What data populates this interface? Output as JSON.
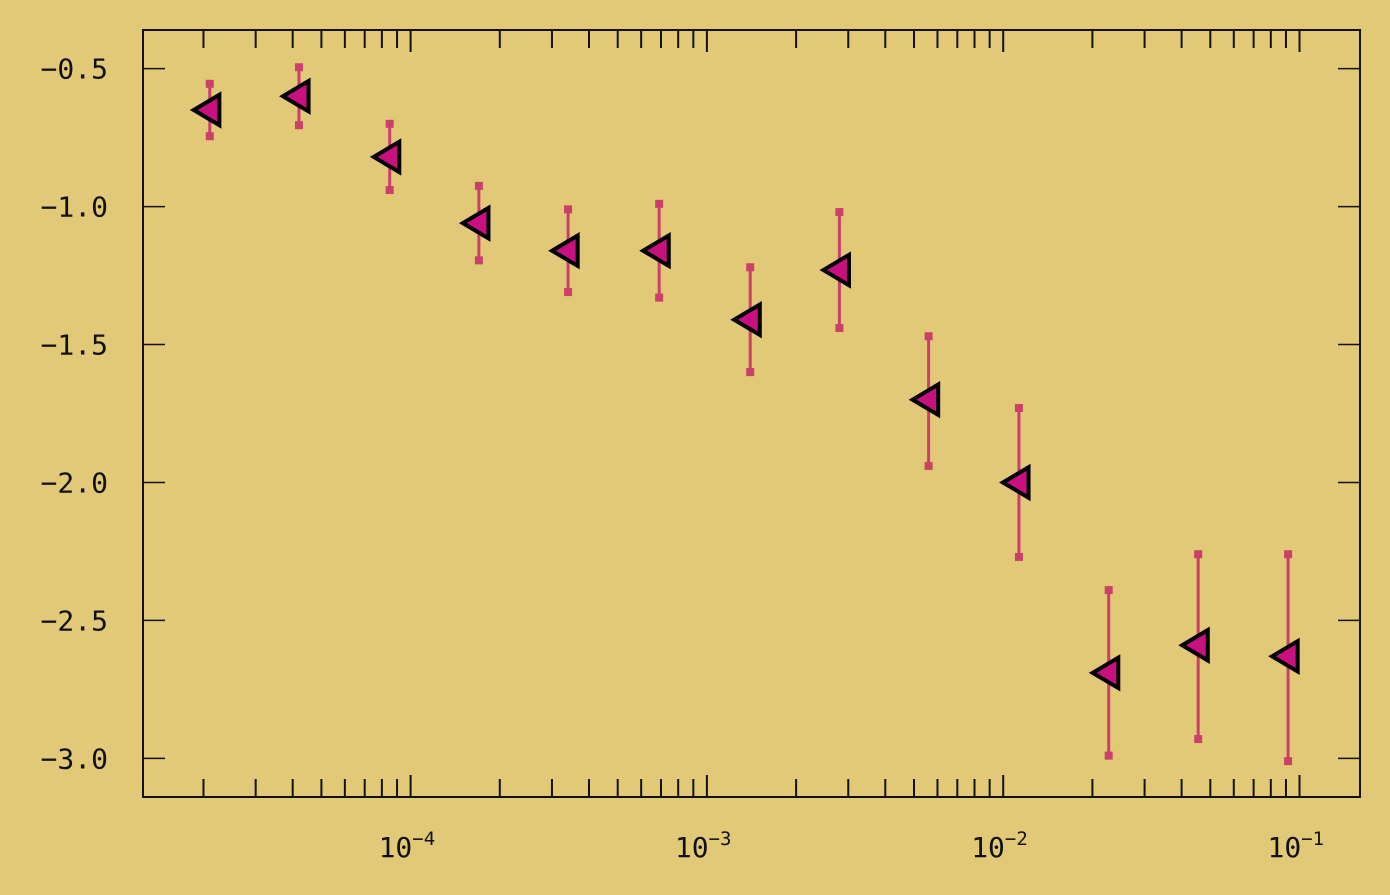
{
  "chart_data": {
    "type": "scatter",
    "title": "",
    "xlabel": "",
    "ylabel": "",
    "x_scale": "log",
    "xlim": [
      1.25e-05,
      0.16
    ],
    "ylim": [
      -3.14,
      -0.36
    ],
    "grid": false,
    "legend": "none",
    "y_ticks": [
      "−0.5",
      "−1.0",
      "−1.5",
      "−2.0",
      "−2.5",
      "−3.0"
    ],
    "y_tick_values": [
      -0.5,
      -1.0,
      -1.5,
      -2.0,
      -2.5,
      -3.0
    ],
    "x_ticks": [
      {
        "base": "10",
        "exp": "−4",
        "value": 0.0001
      },
      {
        "base": "10",
        "exp": "−3",
        "value": 0.001
      },
      {
        "base": "10",
        "exp": "−2",
        "value": 0.01
      },
      {
        "base": "10",
        "exp": "−1",
        "value": 0.1
      }
    ],
    "series": [
      {
        "marker": "triangle-left",
        "marker_color": "#c8107e",
        "edge_color": "#000000",
        "error_color": "#cc3f6a",
        "points": [
          {
            "x": 2.1e-05,
            "y": -0.65,
            "ylo": -0.745,
            "yhi": -0.555
          },
          {
            "x": 4.2e-05,
            "y": -0.6,
            "ylo": -0.705,
            "yhi": -0.495
          },
          {
            "x": 8.5e-05,
            "y": -0.82,
            "ylo": -0.94,
            "yhi": -0.7
          },
          {
            "x": 0.00017,
            "y": -1.06,
            "ylo": -1.195,
            "yhi": -0.925
          },
          {
            "x": 0.00034,
            "y": -1.16,
            "ylo": -1.31,
            "yhi": -1.01
          },
          {
            "x": 0.00069,
            "y": -1.16,
            "ylo": -1.33,
            "yhi": -0.99
          },
          {
            "x": 0.0014,
            "y": -1.41,
            "ylo": -1.6,
            "yhi": -1.22
          },
          {
            "x": 0.0028,
            "y": -1.23,
            "ylo": -1.44,
            "yhi": -1.02
          },
          {
            "x": 0.0056,
            "y": -1.7,
            "ylo": -1.94,
            "yhi": -1.47
          },
          {
            "x": 0.0113,
            "y": -2.0,
            "ylo": -2.27,
            "yhi": -1.73
          },
          {
            "x": 0.0227,
            "y": -2.69,
            "ylo": -2.99,
            "yhi": -2.39
          },
          {
            "x": 0.0455,
            "y": -2.59,
            "ylo": -2.93,
            "yhi": -2.26
          },
          {
            "x": 0.0915,
            "y": -2.63,
            "ylo": -3.01,
            "yhi": -2.26
          }
        ]
      }
    ]
  }
}
